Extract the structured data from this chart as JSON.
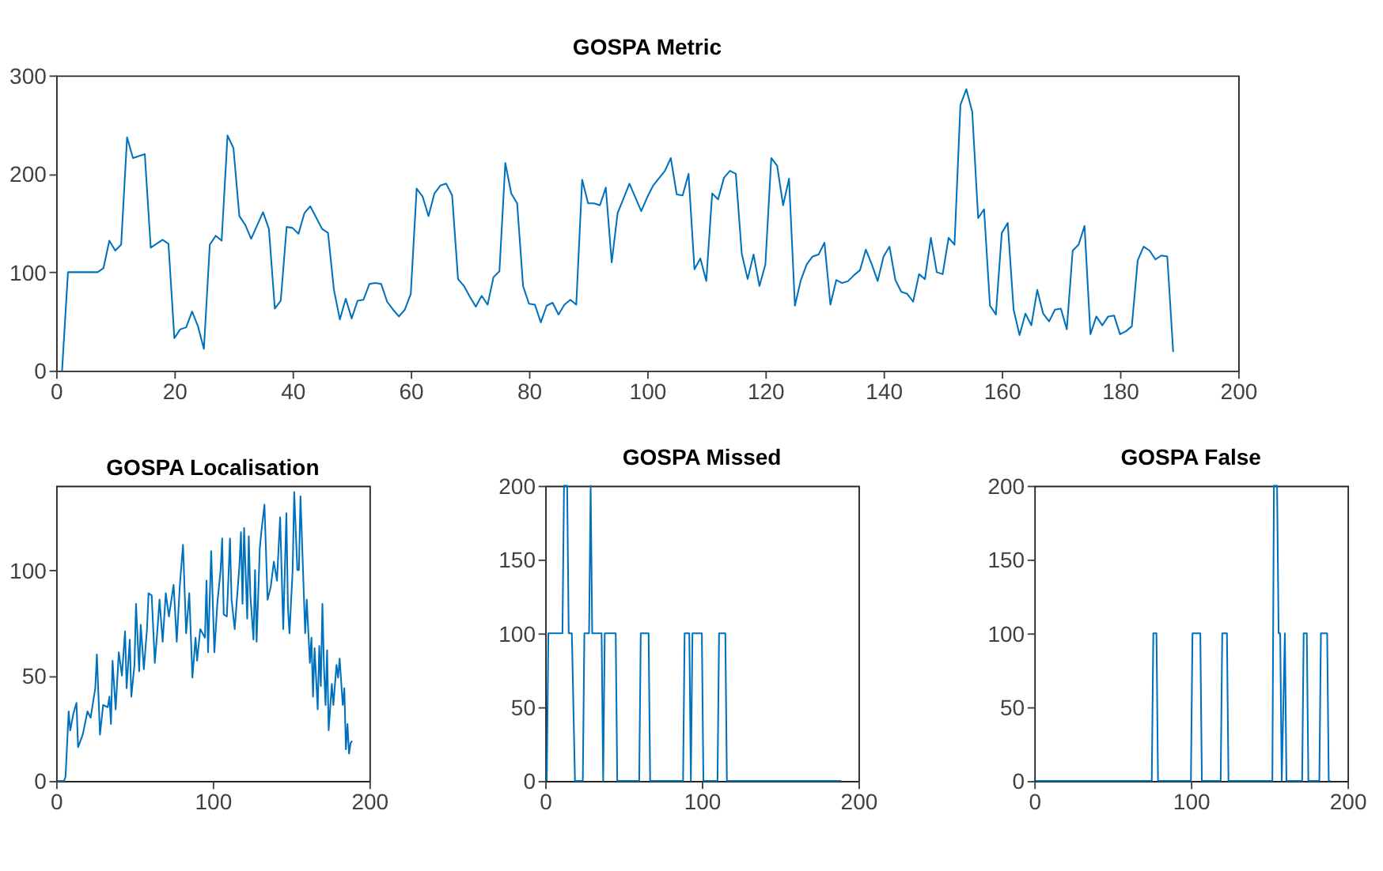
{
  "chart_data": [
    {
      "type": "line",
      "title": "GOSPA Metric",
      "color": "#0072bd",
      "xlim": [
        0,
        200
      ],
      "xticks": [
        0,
        20,
        40,
        60,
        80,
        100,
        120,
        140,
        160,
        180,
        200
      ],
      "ylim": [
        0,
        300
      ],
      "yticks": [
        0,
        100,
        200,
        300
      ],
      "x": [
        1,
        2,
        7,
        8,
        9,
        10,
        11,
        12,
        13,
        15,
        16,
        18,
        19,
        20,
        21,
        22,
        23,
        24,
        25,
        26,
        27,
        28,
        29,
        30,
        31,
        32,
        33,
        35,
        36,
        37,
        38,
        39,
        40,
        41,
        42,
        43,
        45,
        46,
        47,
        48,
        49,
        50,
        51,
        52,
        53,
        54,
        55,
        56,
        57,
        58,
        59,
        60,
        61,
        62,
        63,
        64,
        65,
        66,
        67,
        68,
        69,
        70,
        71,
        72,
        73,
        74,
        75,
        76,
        77,
        78,
        79,
        80,
        81,
        82,
        83,
        84,
        85,
        86,
        87,
        88,
        89,
        90,
        91,
        92,
        93,
        94,
        95,
        97,
        99,
        100,
        101,
        103,
        104,
        105,
        106,
        107,
        108,
        109,
        110,
        111,
        112,
        113,
        114,
        115,
        116,
        117,
        118,
        119,
        120,
        121,
        122,
        123,
        124,
        125,
        126,
        127,
        128,
        129,
        130,
        131,
        132,
        133,
        134,
        135,
        136,
        137,
        138,
        139,
        140,
        141,
        142,
        143,
        144,
        145,
        146,
        147,
        148,
        149,
        150,
        151,
        152,
        153,
        154,
        155,
        156,
        157,
        158,
        159,
        160,
        161,
        162,
        163,
        164,
        165,
        166,
        167,
        168,
        169,
        170,
        171,
        172,
        173,
        174,
        175,
        176,
        177,
        178,
        179,
        180,
        181,
        182,
        183,
        184,
        185,
        186,
        187,
        188,
        189
      ],
      "values": [
        0,
        100,
        100,
        104,
        132,
        122,
        128,
        237,
        216,
        220,
        125,
        133,
        129,
        33,
        42,
        44,
        60,
        45,
        22,
        128,
        137,
        132,
        239,
        226,
        157,
        148,
        134,
        161,
        144,
        63,
        71,
        146,
        145,
        139,
        160,
        167,
        144,
        140,
        82,
        52,
        73,
        53,
        71,
        72,
        88,
        89,
        88,
        70,
        62,
        55,
        62,
        78,
        185,
        177,
        157,
        180,
        188,
        190,
        178,
        93,
        86,
        75,
        65,
        76,
        67,
        95,
        101,
        211,
        180,
        170,
        86,
        68,
        67,
        49,
        66,
        69,
        57,
        67,
        72,
        67,
        194,
        170,
        170,
        168,
        186,
        110,
        160,
        190,
        162,
        176,
        188,
        203,
        216,
        179,
        178,
        200,
        103,
        114,
        91,
        180,
        174,
        196,
        203,
        200,
        119,
        93,
        118,
        86,
        108,
        216,
        208,
        168,
        195,
        66,
        92,
        108,
        116,
        118,
        130,
        67,
        92,
        89,
        91,
        97,
        102,
        123,
        108,
        91,
        116,
        126,
        92,
        80,
        78,
        70,
        98,
        93,
        135,
        100,
        98,
        135,
        128,
        270,
        286,
        263,
        155,
        164,
        66,
        57,
        140,
        150,
        62,
        36,
        58,
        46,
        82,
        58,
        50,
        62,
        63,
        42,
        122,
        128,
        147,
        37,
        55,
        46,
        55,
        56,
        37,
        40,
        45,
        112,
        126,
        122,
        113,
        117,
        116,
        19
      ]
    },
    {
      "type": "line",
      "title": "GOSPA Localisation",
      "color": "#0072bd",
      "xlim": [
        0,
        200
      ],
      "xticks": [
        0,
        100,
        200
      ],
      "ylim": [
        0,
        140
      ],
      "yticks": [
        0,
        50,
        100
      ],
      "x": [
        1,
        5,
        6,
        8,
        9,
        11,
        13,
        14,
        17,
        20,
        22,
        25,
        26,
        28,
        30,
        33,
        34,
        35,
        36,
        38,
        40,
        42,
        44,
        45,
        47,
        48,
        50,
        51,
        53,
        54,
        56,
        58,
        59,
        61,
        63,
        65,
        66,
        68,
        70,
        72,
        75,
        77,
        79,
        81,
        83,
        85,
        87,
        89,
        90,
        92,
        95,
        96,
        97,
        99,
        101,
        103,
        105,
        106,
        107,
        109,
        111,
        112,
        114,
        117,
        118,
        119,
        120,
        122,
        123,
        124,
        126,
        127,
        128,
        130,
        131,
        133,
        135,
        137,
        139,
        141,
        143,
        145,
        147,
        148,
        149,
        151,
        152,
        154,
        155,
        156,
        159,
        160,
        162,
        163,
        164,
        165,
        167,
        168,
        169,
        170,
        171,
        172,
        173,
        174,
        176,
        177,
        179,
        180,
        181,
        183,
        184,
        185,
        186,
        187,
        188,
        189
      ],
      "values": [
        0,
        0,
        2,
        33,
        24,
        32,
        37,
        16,
        22,
        33,
        30,
        44,
        60,
        22,
        36,
        35,
        40,
        27,
        57,
        34,
        61,
        50,
        71,
        44,
        67,
        40,
        55,
        84,
        52,
        74,
        53,
        72,
        89,
        88,
        56,
        75,
        86,
        66,
        89,
        78,
        93,
        66,
        93,
        112,
        70,
        89,
        49,
        68,
        57,
        72,
        68,
        95,
        61,
        109,
        61,
        85,
        100,
        115,
        79,
        78,
        115,
        86,
        72,
        102,
        118,
        84,
        120,
        77,
        116,
        88,
        67,
        100,
        66,
        110,
        118,
        131,
        86,
        92,
        104,
        95,
        125,
        72,
        127,
        82,
        70,
        100,
        137,
        100,
        100,
        135,
        70,
        86,
        56,
        68,
        40,
        63,
        34,
        64,
        45,
        84,
        54,
        36,
        62,
        24,
        46,
        36,
        55,
        49,
        58,
        36,
        44,
        15,
        27,
        13,
        18,
        19
      ]
    },
    {
      "type": "line",
      "title": "GOSPA Missed",
      "color": "#0072bd",
      "xlim": [
        0,
        200
      ],
      "xticks": [
        0,
        100,
        200
      ],
      "ylim": [
        0,
        200
      ],
      "yticks": [
        0,
        50,
        100,
        150,
        200
      ],
      "x": [
        1,
        2,
        11,
        12,
        14,
        15,
        17,
        19,
        24,
        25,
        28,
        29,
        30,
        35,
        36,
        37,
        38,
        45,
        46,
        60,
        61,
        66,
        67,
        88,
        89,
        92,
        93,
        94,
        100,
        101,
        110,
        111,
        115,
        116,
        189
      ],
      "values": [
        0,
        100,
        100,
        200,
        200,
        100,
        100,
        0,
        0,
        100,
        100,
        200,
        100,
        100,
        100,
        0,
        100,
        100,
        0,
        0,
        100,
        100,
        0,
        0,
        100,
        100,
        0,
        100,
        100,
        0,
        0,
        100,
        100,
        0,
        0
      ]
    },
    {
      "type": "line",
      "title": "GOSPA False",
      "color": "#0072bd",
      "xlim": [
        0,
        200
      ],
      "xticks": [
        0,
        100,
        200
      ],
      "ylim": [
        0,
        200
      ],
      "yticks": [
        0,
        50,
        100,
        150,
        200
      ],
      "x": [
        1,
        75,
        76,
        78,
        79,
        100,
        101,
        106,
        107,
        119,
        120,
        123,
        124,
        152,
        153,
        155,
        156,
        157,
        158,
        160,
        161,
        171,
        172,
        174,
        175,
        182,
        183,
        187,
        188,
        189
      ],
      "values": [
        0,
        0,
        100,
        100,
        0,
        0,
        100,
        100,
        0,
        0,
        100,
        100,
        0,
        0,
        200,
        200,
        100,
        100,
        0,
        100,
        0,
        0,
        100,
        100,
        0,
        0,
        100,
        100,
        0,
        0
      ]
    }
  ]
}
